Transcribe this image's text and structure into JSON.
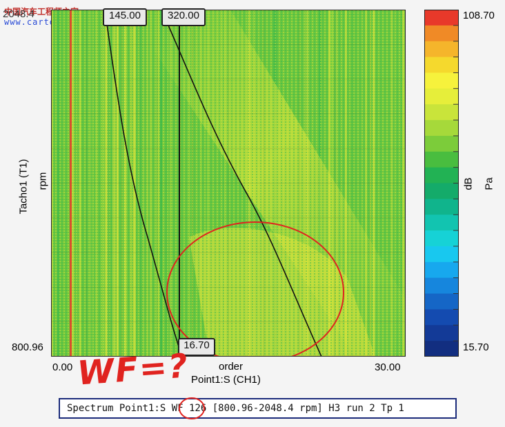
{
  "watermark": {
    "text": "www.cartech8.com",
    "cn_text": "中国汽车工程师之家"
  },
  "chart_data": {
    "type": "heatmap",
    "title": "",
    "xlabel": "order",
    "xlabel_2": "Point1:S (CH1)",
    "ylabel": "rpm",
    "ylabel_2": "Tacho1 (T1)",
    "xlim": [
      0.0,
      30.0
    ],
    "ylim": [
      800.96,
      2048.4
    ],
    "x_tick_labels": [
      "0.00",
      "30.00"
    ],
    "y_tick_labels": [
      "800.96",
      "2048.4"
    ],
    "colorbar": {
      "min": 15.7,
      "max": 108.7,
      "min_label": "15.70",
      "max_label": "108.70",
      "unit_db": "dB",
      "unit_pa": "Pa"
    },
    "cursors": {
      "x1_label": "145.00",
      "x2_label": "320.00",
      "bottom_label": "16.70"
    },
    "grid": true
  },
  "colors": {
    "high": "#e8392a",
    "mid_high": "#f7e23a",
    "mid": "#8fd13a",
    "mid_low": "#18b56a",
    "low_cyan": "#18d3e0",
    "low": "#1a3f9a",
    "annotation": "#e0231f"
  },
  "annotation": {
    "text": "WF=?"
  },
  "status_bar": {
    "text": "Spectrum Point1:S WF 126 [800.96-2048.4 rpm] H3 run 2 Tp 1"
  }
}
